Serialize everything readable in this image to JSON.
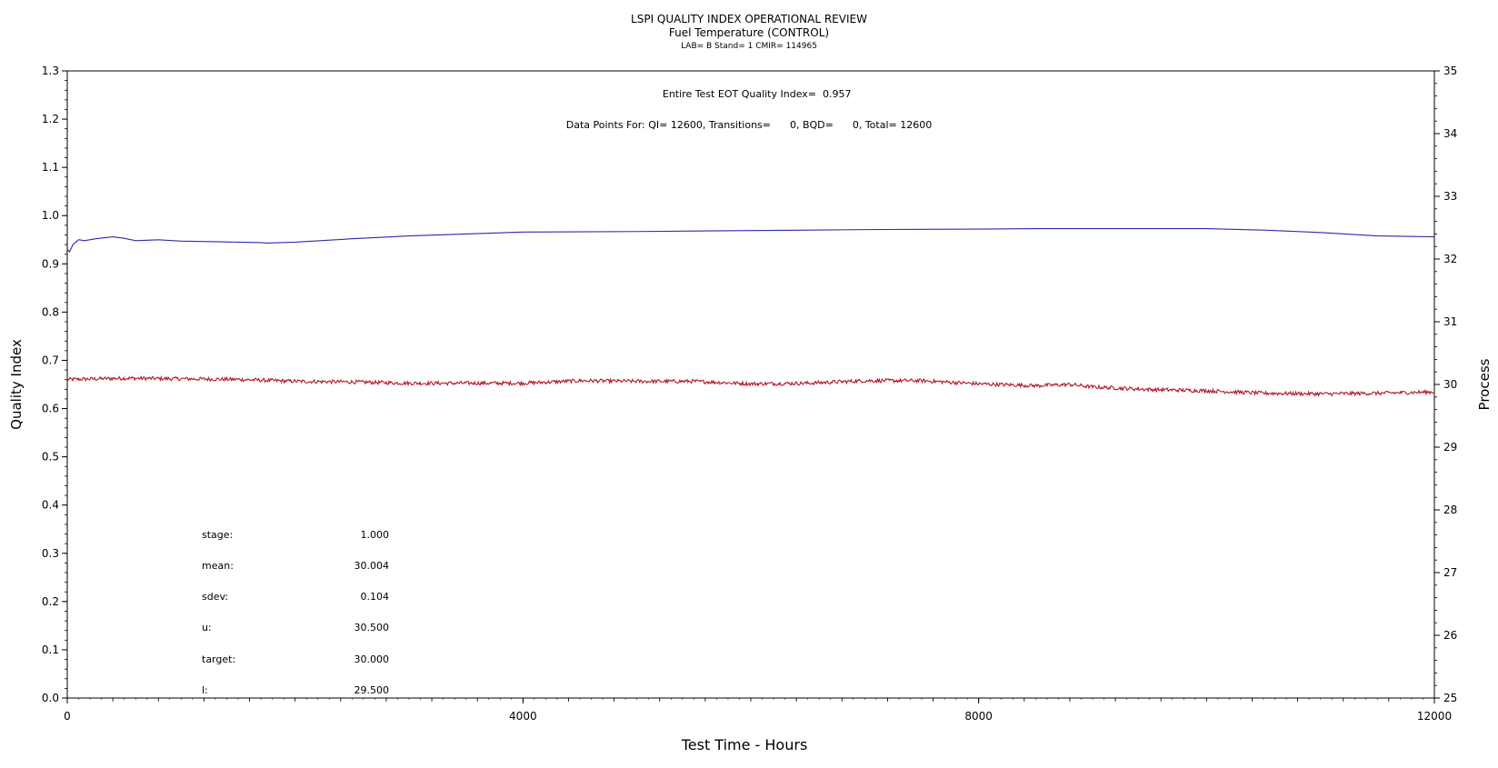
{
  "chart_data": {
    "type": "line",
    "title": "LSPI QUALITY INDEX OPERATIONAL REVIEW",
    "subtitle": "Fuel Temperature (CONTROL)",
    "subsubtitle": "LAB= B Stand= 1 CMIR= 114965",
    "xlabel": "Test Time - Hours",
    "ylabel_left": "Quality Index",
    "ylabel_right": "Process",
    "xlim": [
      0,
      12000
    ],
    "ylim_left": [
      0.0,
      1.3
    ],
    "ylim_right": [
      25,
      35
    ],
    "x_ticks": [
      "0",
      "4000",
      "8000",
      "12000"
    ],
    "y_left_ticks": [
      "0.0",
      "0.1",
      "0.2",
      "0.3",
      "0.4",
      "0.5",
      "0.6",
      "0.7",
      "0.8",
      "0.9",
      "1.0",
      "1.1",
      "1.2",
      "1.3"
    ],
    "y_right_ticks": [
      "25",
      "26",
      "27",
      "28",
      "29",
      "30",
      "31",
      "32",
      "33",
      "34",
      "35"
    ],
    "grid": false,
    "annotations": {
      "eot_label": "Entire Test EOT Quality Index=",
      "eot_value": "0.957",
      "datapoints_text": "Data Points For: QI= 12600, Transitions=      0, BQD=      0, Total= 12600"
    },
    "stats": [
      {
        "label": "stage:",
        "value": "1.000"
      },
      {
        "label": "mean:",
        "value": "30.004"
      },
      {
        "label": "sdev:",
        "value": "0.104"
      },
      {
        "label": "u:",
        "value": "30.500"
      },
      {
        "label": "target:",
        "value": "30.000"
      },
      {
        "label": "l:",
        "value": "29.500"
      }
    ],
    "series": [
      {
        "axis": "left",
        "color": "#2b2bb0",
        "x": [
          0,
          20,
          50,
          100,
          150,
          250,
          400,
          500,
          600,
          800,
          1000,
          1300,
          1500,
          1700,
          1750,
          2000,
          2500,
          3000,
          3500,
          4000,
          5000,
          6000,
          7000,
          8000,
          8500,
          9000,
          10000,
          10500,
          11000,
          11500,
          12000
        ],
        "values": [
          0.93,
          0.925,
          0.94,
          0.95,
          0.948,
          0.952,
          0.956,
          0.953,
          0.948,
          0.95,
          0.947,
          0.946,
          0.945,
          0.944,
          0.943,
          0.945,
          0.952,
          0.958,
          0.962,
          0.966,
          0.967,
          0.969,
          0.971,
          0.972,
          0.973,
          0.973,
          0.973,
          0.97,
          0.965,
          0.958,
          0.956
        ]
      },
      {
        "axis": "right",
        "color": "#b0182b",
        "noise": 0.03,
        "x": [
          0,
          500,
          1000,
          1500,
          2000,
          2500,
          3000,
          3500,
          4000,
          4500,
          5000,
          5500,
          6000,
          6500,
          7000,
          7500,
          8000,
          8500,
          8800,
          9000,
          9500,
          10000,
          10500,
          11000,
          11500,
          12000
        ],
        "values": [
          30.08,
          30.1,
          30.09,
          30.08,
          30.05,
          30.04,
          30.02,
          30.02,
          30.02,
          30.06,
          30.05,
          30.05,
          30.01,
          30.02,
          30.06,
          30.06,
          30.01,
          29.98,
          30.0,
          29.96,
          29.92,
          29.9,
          29.86,
          29.85,
          29.86,
          29.88
        ]
      }
    ]
  }
}
